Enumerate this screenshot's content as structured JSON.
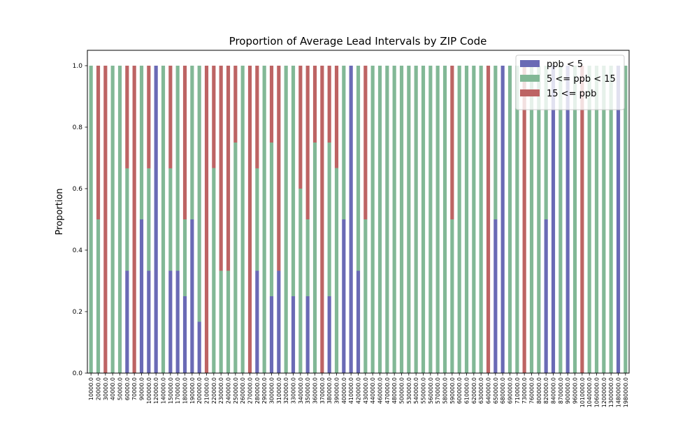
{
  "chart_data": {
    "type": "bar",
    "stacked": true,
    "title": "Proportion of Average Lead Intervals by ZIP Code",
    "xlabel": "",
    "ylabel": "Proportion",
    "ylim": [
      0,
      1.05
    ],
    "yticks": [
      "0.0",
      "0.2",
      "0.4",
      "0.6",
      "0.8",
      "1.0"
    ],
    "grid": false,
    "legend_position": "top-right",
    "categories": [
      "10000.0",
      "20000.0",
      "30000.0",
      "40000.0",
      "50000.0",
      "60000.0",
      "70000.0",
      "90000.0",
      "100000.0",
      "120000.0",
      "140000.0",
      "150000.0",
      "170000.0",
      "180000.0",
      "190000.0",
      "200000.0",
      "210000.0",
      "220000.0",
      "230000.0",
      "240000.0",
      "250000.0",
      "260000.0",
      "270000.0",
      "280000.0",
      "290000.0",
      "300000.0",
      "310000.0",
      "320000.0",
      "330000.0",
      "340000.0",
      "350000.0",
      "360000.0",
      "370000.0",
      "380000.0",
      "390000.0",
      "400000.0",
      "410000.0",
      "420000.0",
      "430000.0",
      "440000.0",
      "460000.0",
      "470000.0",
      "480000.0",
      "500000.0",
      "530000.0",
      "540000.0",
      "550000.0",
      "560000.0",
      "570000.0",
      "580000.0",
      "590000.0",
      "600000.0",
      "610000.0",
      "620000.0",
      "630000.0",
      "640000.0",
      "650000.0",
      "680000.0",
      "690000.0",
      "710000.0",
      "730000.0",
      "760000.0",
      "800000.0",
      "820000.0",
      "840000.0",
      "870000.0",
      "900000.0",
      "960000.0",
      "1010000.0",
      "1040000.0",
      "1060000.0",
      "1200000.0",
      "1300000.0",
      "1480000.0",
      "1980000.0"
    ],
    "series": [
      {
        "name": "ppb < 5",
        "color": "#6a6ab5",
        "values": [
          0,
          0,
          0,
          0,
          0,
          0.333,
          0,
          0.5,
          0.333,
          1,
          0,
          0.333,
          0.333,
          0.25,
          0.5,
          0.167,
          0,
          0,
          0,
          0,
          0,
          0,
          0,
          0.333,
          0,
          0.25,
          0.333,
          0,
          0.25,
          0,
          0.25,
          0,
          0,
          0.25,
          0,
          0.5,
          1,
          0.333,
          0,
          0,
          0,
          0,
          0,
          0,
          0,
          0,
          0,
          0,
          0,
          0,
          0,
          0,
          0,
          0,
          0,
          0,
          0.5,
          1,
          0,
          0,
          0,
          0,
          0,
          0.5,
          1,
          0,
          1,
          0,
          0,
          0,
          0,
          0,
          0,
          1,
          0
        ]
      },
      {
        "name": "5 <= ppb < 15",
        "color": "#82b896",
        "values": [
          1,
          0.5,
          0,
          1,
          1,
          0.333,
          0,
          0.5,
          0.333,
          0,
          1,
          0.333,
          0.667,
          0.25,
          0.5,
          0.833,
          0,
          0.667,
          0.333,
          0.333,
          0.75,
          1,
          0,
          0.333,
          1,
          0.5,
          0,
          1,
          0.75,
          0.6,
          0.25,
          0.75,
          0,
          0.5,
          0.667,
          0.5,
          0,
          0.667,
          0.5,
          1,
          1,
          1,
          1,
          1,
          1,
          1,
          1,
          1,
          1,
          1,
          0.5,
          1,
          1,
          1,
          1,
          0,
          0.5,
          0,
          1,
          1,
          0,
          1,
          1,
          0.5,
          0,
          1,
          0,
          1,
          0,
          1,
          1,
          1,
          1,
          0,
          1
        ]
      },
      {
        "name": "15 <= ppb",
        "color": "#bd6464",
        "values": [
          0,
          0.5,
          1,
          0,
          0,
          0.334,
          1,
          0,
          0.334,
          0,
          0,
          0.334,
          0,
          0.5,
          0,
          0,
          1,
          0.333,
          0.667,
          0.667,
          0.25,
          0,
          1,
          0.334,
          0,
          0.25,
          0.667,
          0,
          0,
          0.4,
          0.5,
          0.25,
          1,
          0.25,
          0.333,
          0,
          0,
          0,
          0.5,
          0,
          0,
          0,
          0,
          0,
          0,
          0,
          0,
          0,
          0,
          0,
          0.5,
          0,
          0,
          0,
          0,
          1,
          0,
          0,
          0,
          0,
          1,
          0,
          0,
          0,
          0,
          0,
          0,
          0,
          1,
          0,
          0,
          0,
          0,
          0,
          0
        ]
      }
    ]
  }
}
